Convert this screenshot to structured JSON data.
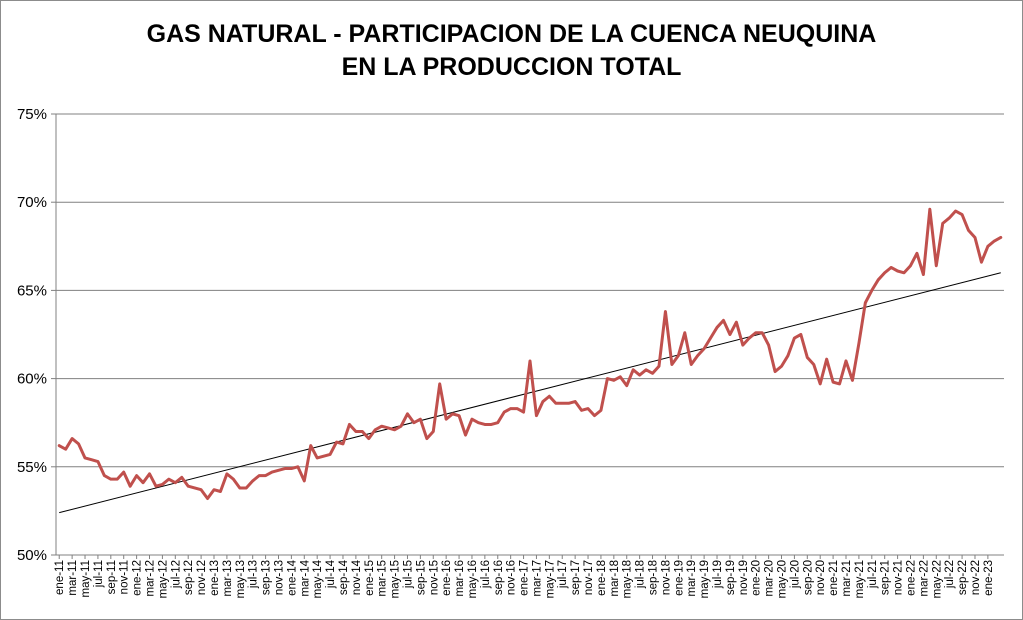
{
  "chart_data": {
    "type": "line",
    "title_lines": [
      "GAS NATURAL - PARTICIPACION DE LA CUENCA NEUQUINA",
      "EN LA PRODUCCION TOTAL"
    ],
    "y_tick_labels": [
      "50%",
      "55%",
      "60%",
      "65%",
      "70%",
      "75%"
    ],
    "y_ticks": [
      50,
      55,
      60,
      65,
      70,
      75
    ],
    "ylim": [
      50,
      75
    ],
    "grid": "horizontal",
    "legend": "none",
    "colors": {
      "series": "#c0504d",
      "trend": "#000000",
      "grid": "#808080"
    },
    "x_tick_labels": [
      "ene-11",
      "mar-11",
      "may-11",
      "jul-11",
      "sep-11",
      "nov-11",
      "ene-12",
      "mar-12",
      "may-12",
      "jul-12",
      "sep-12",
      "nov-12",
      "ene-13",
      "mar-13",
      "may-13",
      "jul-13",
      "sep-13",
      "nov-13",
      "ene-14",
      "mar-14",
      "may-14",
      "jul-14",
      "sep-14",
      "nov-14",
      "ene-15",
      "mar-15",
      "may-15",
      "jul-15",
      "sep-15",
      "nov-15",
      "ene-16",
      "mar-16",
      "may-16",
      "jul-16",
      "sep-16",
      "nov-16",
      "ene-17",
      "mar-17",
      "may-17",
      "jul-17",
      "sep-17",
      "nov-17",
      "ene-18",
      "mar-18",
      "may-18",
      "jul-18",
      "sep-18",
      "nov-18",
      "ene-19",
      "mar-19",
      "may-19",
      "jul-19",
      "sep-19",
      "nov-19",
      "ene-20",
      "mar-20",
      "may-20",
      "jul-20",
      "sep-20",
      "nov-20",
      "ene-21",
      "mar-21",
      "may-21",
      "jul-21",
      "sep-21",
      "nov-21",
      "ene-22",
      "mar-22",
      "may-22",
      "jul-22",
      "sep-22",
      "nov-22",
      "ene-23"
    ],
    "series": [
      {
        "type": "line",
        "values": [
          56.2,
          56.0,
          56.6,
          56.3,
          55.5,
          55.4,
          55.3,
          54.5,
          54.3,
          54.3,
          54.7,
          53.9,
          54.5,
          54.1,
          54.6,
          53.9,
          54.0,
          54.3,
          54.1,
          54.4,
          53.9,
          53.8,
          53.7,
          53.2,
          53.7,
          53.6,
          54.6,
          54.3,
          53.8,
          53.8,
          54.2,
          54.5,
          54.5,
          54.7,
          54.8,
          54.9,
          54.9,
          55.0,
          54.2,
          56.2,
          55.5,
          55.6,
          55.7,
          56.4,
          56.3,
          57.4,
          57.0,
          57.0,
          56.6,
          57.1,
          57.3,
          57.2,
          57.1,
          57.3,
          58.0,
          57.5,
          57.7,
          56.6,
          57.0,
          59.7,
          57.7,
          58.0,
          57.9,
          56.8,
          57.7,
          57.5,
          57.4,
          57.4,
          57.5,
          58.1,
          58.3,
          58.3,
          58.1,
          61.0,
          57.9,
          58.7,
          59.0,
          58.6,
          58.6,
          58.6,
          58.7,
          58.2,
          58.3,
          57.9,
          58.2,
          60.0,
          59.9,
          60.1,
          59.6,
          60.5,
          60.2,
          60.5,
          60.3,
          60.7,
          63.8,
          60.8,
          61.3,
          62.6,
          60.8,
          61.3,
          61.7,
          62.3,
          62.9,
          63.3,
          62.5,
          63.2,
          61.9,
          62.3,
          62.6,
          62.6,
          61.9,
          60.4,
          60.7,
          61.3,
          62.3,
          62.5,
          61.2,
          60.8,
          59.7,
          61.1,
          59.8,
          59.7,
          61.0,
          59.9,
          62.0,
          64.3,
          65.0,
          65.6,
          66.0,
          66.3,
          66.1,
          66.0,
          66.4,
          67.1,
          65.9,
          69.6,
          66.4,
          68.8,
          69.1,
          69.5,
          69.3,
          68.4,
          68.0,
          66.6,
          67.5,
          67.8,
          68.0
        ]
      },
      {
        "type": "trendline",
        "values": [
          52.4,
          66.0
        ]
      }
    ]
  }
}
